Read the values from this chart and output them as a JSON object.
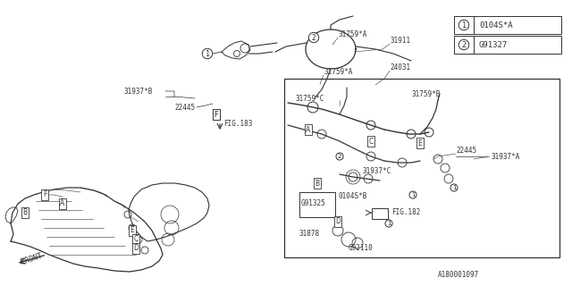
{
  "bg_color": "#ffffff",
  "line_color": "#333333",
  "text_color": "#333333",
  "fig_width": 6.4,
  "fig_height": 3.2,
  "dpi": 100,
  "legend": [
    {
      "num": "1",
      "label": "0104S*A"
    },
    {
      "num": "2",
      "label": "G91327"
    }
  ]
}
